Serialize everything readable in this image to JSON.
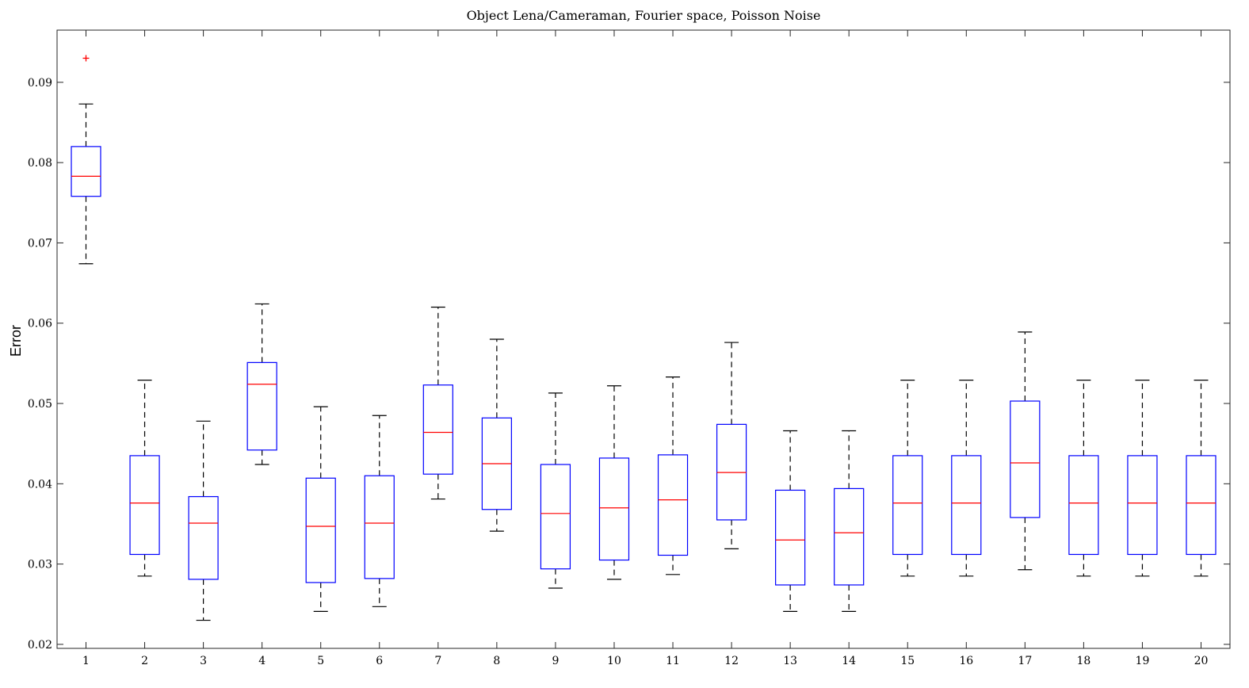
{
  "chart_data": {
    "type": "boxplot",
    "title": "Object Lena/Cameraman, Fourier space, Poisson Noise",
    "xlabel": "",
    "ylabel": "Error",
    "ylim": [
      0.0195,
      0.0965
    ],
    "yticks": [
      0.02,
      0.03,
      0.04,
      0.05,
      0.06,
      0.07,
      0.08,
      0.09
    ],
    "ytick_labels": [
      "0.02",
      "0.03",
      "0.04",
      "0.05",
      "0.06",
      "0.07",
      "0.08",
      "0.09"
    ],
    "categories": [
      "1",
      "2",
      "3",
      "4",
      "5",
      "6",
      "7",
      "8",
      "9",
      "10",
      "11",
      "12",
      "13",
      "14",
      "15",
      "16",
      "17",
      "18",
      "19",
      "20"
    ],
    "grid": false,
    "colors": {
      "box": "#0000ff",
      "median": "#ff0000",
      "whisker": "#000000",
      "outlier": "#ff0000"
    },
    "boxes": [
      {
        "min": 0.0674,
        "q1": 0.0758,
        "median": 0.0783,
        "q3": 0.082,
        "max": 0.0873,
        "outliers": [
          0.093
        ]
      },
      {
        "min": 0.0285,
        "q1": 0.0312,
        "median": 0.0376,
        "q3": 0.0435,
        "max": 0.0529,
        "outliers": []
      },
      {
        "min": 0.023,
        "q1": 0.0281,
        "median": 0.0351,
        "q3": 0.0384,
        "max": 0.0478,
        "outliers": []
      },
      {
        "min": 0.0424,
        "q1": 0.0442,
        "median": 0.0524,
        "q3": 0.0551,
        "max": 0.0624,
        "outliers": []
      },
      {
        "min": 0.0241,
        "q1": 0.0277,
        "median": 0.0347,
        "q3": 0.0407,
        "max": 0.0496,
        "outliers": []
      },
      {
        "min": 0.0247,
        "q1": 0.0282,
        "median": 0.0351,
        "q3": 0.041,
        "max": 0.0485,
        "outliers": []
      },
      {
        "min": 0.0381,
        "q1": 0.0412,
        "median": 0.0464,
        "q3": 0.0523,
        "max": 0.062,
        "outliers": []
      },
      {
        "min": 0.0341,
        "q1": 0.0368,
        "median": 0.0425,
        "q3": 0.0482,
        "max": 0.058,
        "outliers": []
      },
      {
        "min": 0.027,
        "q1": 0.0294,
        "median": 0.0363,
        "q3": 0.0424,
        "max": 0.0513,
        "outliers": []
      },
      {
        "min": 0.0281,
        "q1": 0.0305,
        "median": 0.037,
        "q3": 0.0432,
        "max": 0.0522,
        "outliers": []
      },
      {
        "min": 0.0287,
        "q1": 0.0311,
        "median": 0.038,
        "q3": 0.0436,
        "max": 0.0533,
        "outliers": []
      },
      {
        "min": 0.0319,
        "q1": 0.0355,
        "median": 0.0414,
        "q3": 0.0474,
        "max": 0.0576,
        "outliers": []
      },
      {
        "min": 0.0241,
        "q1": 0.0274,
        "median": 0.033,
        "q3": 0.0392,
        "max": 0.0466,
        "outliers": []
      },
      {
        "min": 0.0241,
        "q1": 0.0274,
        "median": 0.0339,
        "q3": 0.0394,
        "max": 0.0466,
        "outliers": []
      },
      {
        "min": 0.0285,
        "q1": 0.0312,
        "median": 0.0376,
        "q3": 0.0435,
        "max": 0.0529,
        "outliers": []
      },
      {
        "min": 0.0285,
        "q1": 0.0312,
        "median": 0.0376,
        "q3": 0.0435,
        "max": 0.0529,
        "outliers": []
      },
      {
        "min": 0.0293,
        "q1": 0.0358,
        "median": 0.0426,
        "q3": 0.0503,
        "max": 0.0589,
        "outliers": []
      },
      {
        "min": 0.0285,
        "q1": 0.0312,
        "median": 0.0376,
        "q3": 0.0435,
        "max": 0.0529,
        "outliers": []
      },
      {
        "min": 0.0285,
        "q1": 0.0312,
        "median": 0.0376,
        "q3": 0.0435,
        "max": 0.0529,
        "outliers": []
      },
      {
        "min": 0.0285,
        "q1": 0.0312,
        "median": 0.0376,
        "q3": 0.0435,
        "max": 0.0529,
        "outliers": []
      }
    ]
  }
}
